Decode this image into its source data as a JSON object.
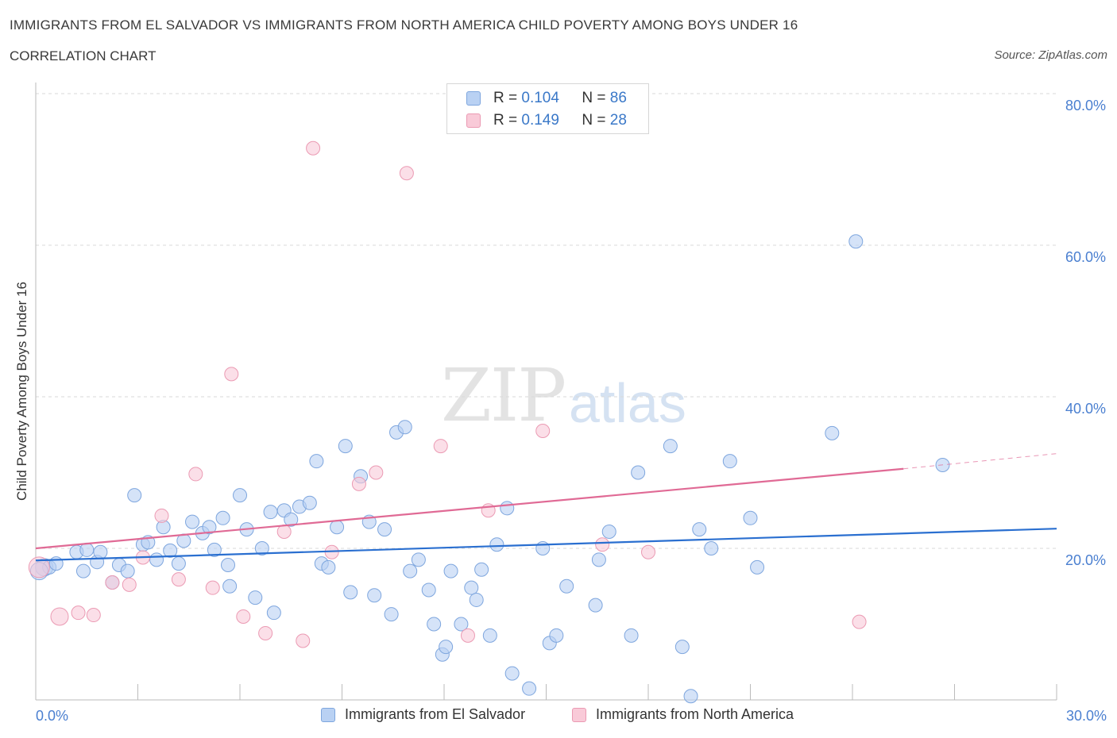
{
  "title": "IMMIGRANTS FROM EL SALVADOR VS IMMIGRANTS FROM NORTH AMERICA CHILD POVERTY AMONG BOYS UNDER 16",
  "subtitle": "CORRELATION CHART",
  "source": "Source: ZipAtlas.com",
  "watermark": {
    "zip": "ZIP",
    "atlas": "atlas"
  },
  "legend_top": [
    {
      "r_label": "R =",
      "r_value": "0.104",
      "n_label": "N =",
      "n_value": "86"
    },
    {
      "r_label": "R =",
      "r_value": "0.149",
      "n_label": "N =",
      "n_value": "28"
    }
  ],
  "colors": {
    "blue_fill": "#b9d1f3",
    "blue_stroke": "#7ea6de",
    "blue_line": "#2a6fd0",
    "pink_fill": "#f9cad8",
    "pink_stroke": "#eb9ab3",
    "pink_line": "#e06a95",
    "axis_label": "#4a7fd0",
    "grid": "#d9d9d9"
  },
  "chart_data": {
    "type": "scatter",
    "xlabel": "",
    "ylabel": "Child Poverty Among Boys Under 16",
    "xlim": [
      0,
      30
    ],
    "ylim": [
      0,
      80
    ],
    "x_tick_labels": [
      "0.0%",
      "30.0%"
    ],
    "y_tick_labels": [
      "20.0%",
      "40.0%",
      "60.0%",
      "80.0%"
    ],
    "y_ticks": [
      20,
      40,
      60,
      80
    ],
    "series": [
      {
        "name": "Immigrants from El Salvador",
        "color": "blue",
        "r": 0.104,
        "n": 86,
        "trend": {
          "x0": 0,
          "y0": 18.4,
          "x1": 30,
          "y1": 22.6
        },
        "points": [
          [
            0.25,
            17.5
          ],
          [
            0.4,
            17.5
          ],
          [
            0.6,
            18.0
          ],
          [
            1.2,
            19.5
          ],
          [
            1.4,
            17.0
          ],
          [
            1.5,
            19.8
          ],
          [
            1.8,
            18.2
          ],
          [
            1.9,
            19.5
          ],
          [
            2.25,
            15.5
          ],
          [
            2.45,
            17.8
          ],
          [
            2.7,
            17.0
          ],
          [
            2.9,
            27.0
          ],
          [
            3.15,
            20.5
          ],
          [
            3.3,
            20.8
          ],
          [
            3.55,
            18.5
          ],
          [
            3.75,
            22.8
          ],
          [
            3.95,
            19.7
          ],
          [
            4.2,
            18.0
          ],
          [
            4.35,
            21.0
          ],
          [
            4.6,
            23.5
          ],
          [
            4.9,
            22.0
          ],
          [
            5.1,
            22.8
          ],
          [
            5.25,
            19.8
          ],
          [
            5.5,
            24.0
          ],
          [
            5.7,
            15.0
          ],
          [
            6.0,
            27.0
          ],
          [
            6.2,
            22.5
          ],
          [
            6.45,
            13.5
          ],
          [
            6.65,
            20.0
          ],
          [
            6.9,
            24.8
          ],
          [
            7.0,
            11.5
          ],
          [
            7.3,
            25.0
          ],
          [
            7.5,
            23.8
          ],
          [
            7.75,
            25.5
          ],
          [
            8.05,
            26.0
          ],
          [
            8.25,
            31.5
          ],
          [
            8.4,
            18.0
          ],
          [
            8.6,
            17.5
          ],
          [
            8.85,
            22.8
          ],
          [
            9.1,
            33.5
          ],
          [
            9.25,
            14.2
          ],
          [
            9.55,
            29.5
          ],
          [
            9.8,
            23.5
          ],
          [
            9.95,
            13.8
          ],
          [
            10.25,
            22.5
          ],
          [
            10.45,
            11.3
          ],
          [
            10.6,
            35.3
          ],
          [
            10.85,
            36.0
          ],
          [
            11.0,
            17.0
          ],
          [
            11.25,
            18.5
          ],
          [
            11.55,
            14.5
          ],
          [
            11.7,
            10.0
          ],
          [
            11.95,
            6.0
          ],
          [
            12.05,
            7.0
          ],
          [
            12.2,
            17.0
          ],
          [
            12.5,
            10.0
          ],
          [
            12.8,
            14.8
          ],
          [
            12.95,
            13.2
          ],
          [
            13.1,
            17.2
          ],
          [
            13.35,
            8.5
          ],
          [
            13.55,
            20.5
          ],
          [
            13.85,
            25.3
          ],
          [
            14.0,
            3.5
          ],
          [
            14.5,
            1.5
          ],
          [
            14.9,
            20.0
          ],
          [
            15.1,
            7.5
          ],
          [
            15.3,
            8.5
          ],
          [
            15.6,
            15.0
          ],
          [
            16.45,
            12.5
          ],
          [
            16.55,
            18.5
          ],
          [
            16.85,
            22.2
          ],
          [
            17.5,
            8.5
          ],
          [
            17.7,
            30.0
          ],
          [
            18.65,
            33.5
          ],
          [
            19.0,
            7.0
          ],
          [
            19.25,
            0.5
          ],
          [
            19.5,
            22.5
          ],
          [
            19.85,
            20.0
          ],
          [
            20.4,
            31.5
          ],
          [
            21.0,
            24.0
          ],
          [
            21.2,
            17.5
          ],
          [
            23.4,
            35.2
          ],
          [
            24.1,
            60.5
          ],
          [
            26.65,
            31.0
          ],
          [
            0.1,
            17.0
          ],
          [
            5.65,
            17.8
          ]
        ]
      },
      {
        "name": "Immigrants from North America",
        "color": "pink",
        "r": 0.149,
        "n": 28,
        "trend": {
          "x0": 0,
          "y0": 20.0,
          "x1": 25.5,
          "y1": 30.5
        },
        "trend_extension": {
          "x0": 25.5,
          "y0": 30.5,
          "x1": 30,
          "y1": 32.5
        },
        "points": [
          [
            0.1,
            17.5
          ],
          [
            0.7,
            11.0
          ],
          [
            1.25,
            11.5
          ],
          [
            1.7,
            11.2
          ],
          [
            2.25,
            15.5
          ],
          [
            2.75,
            15.2
          ],
          [
            3.7,
            24.3
          ],
          [
            4.2,
            15.9
          ],
          [
            4.7,
            29.8
          ],
          [
            5.2,
            14.8
          ],
          [
            5.75,
            43.0
          ],
          [
            6.1,
            11.0
          ],
          [
            6.75,
            8.8
          ],
          [
            7.3,
            22.2
          ],
          [
            7.85,
            7.8
          ],
          [
            8.15,
            72.8
          ],
          [
            8.7,
            19.5
          ],
          [
            9.5,
            28.5
          ],
          [
            10.0,
            30.0
          ],
          [
            10.9,
            69.5
          ],
          [
            11.9,
            33.5
          ],
          [
            12.7,
            8.5
          ],
          [
            13.3,
            25.0
          ],
          [
            14.9,
            35.5
          ],
          [
            16.65,
            20.5
          ],
          [
            18.0,
            19.5
          ],
          [
            24.2,
            10.3
          ],
          [
            3.15,
            18.8
          ]
        ]
      }
    ]
  },
  "bottom_legend": [
    "Immigrants from El Salvador",
    "Immigrants from North America"
  ]
}
